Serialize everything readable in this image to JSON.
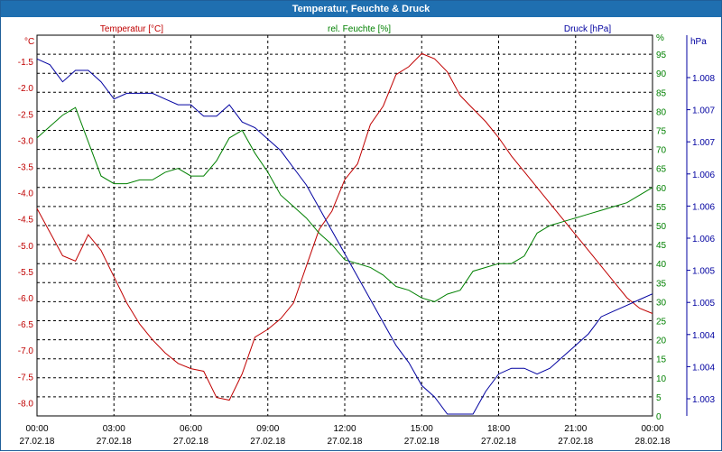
{
  "window": {
    "title": "Temperatur, Feuchte & Druck"
  },
  "chart_data": {
    "type": "line",
    "x_tick_labels": [
      {
        "time": "00:00",
        "date": "27.02.18"
      },
      {
        "time": "03:00",
        "date": "27.02.18"
      },
      {
        "time": "06:00",
        "date": "27.02.18"
      },
      {
        "time": "09:00",
        "date": "27.02.18"
      },
      {
        "time": "12:00",
        "date": "27.02.18"
      },
      {
        "time": "15:00",
        "date": "27.02.18"
      },
      {
        "time": "18:00",
        "date": "27.02.18"
      },
      {
        "time": "21:00",
        "date": "27.02.18"
      },
      {
        "time": "00:00",
        "date": "28.02.18"
      }
    ],
    "grid": true,
    "axes": {
      "temperature": {
        "unit_label": "°C",
        "ylim": [
          -8.25,
          -1.0
        ],
        "ticks": [
          "-1.5",
          "-2.0",
          "-2.5",
          "-3.0",
          "-3.5",
          "-4.0",
          "-4.5",
          "-5.0",
          "-5.5",
          "-6.0",
          "-6.5",
          "-7.0",
          "-7.5",
          "-8.0"
        ],
        "color": "#c00000"
      },
      "humidity": {
        "unit_label": "%",
        "ylim": [
          0,
          100
        ],
        "ticks": [
          "0",
          "5",
          "10",
          "15",
          "20",
          "25",
          "30",
          "35",
          "40",
          "45",
          "50",
          "55",
          "60",
          "65",
          "70",
          "75",
          "80",
          "85",
          "90",
          "95",
          "%"
        ],
        "color": "#008000"
      },
      "pressure": {
        "unit_label": "hPa",
        "ticks": [
          "1.008",
          "1.007",
          "1.007",
          "1.006",
          "1.006",
          "1.006",
          "1.005",
          "1.005",
          "1.004",
          "1.004",
          "1.003"
        ],
        "color": "#0000a0"
      }
    },
    "series": [
      {
        "name": "Temperatur [°C]",
        "axis": "temperature",
        "color": "#c00000",
        "x_hours": [
          0,
          0.5,
          1,
          1.5,
          2,
          2.5,
          3,
          3.5,
          4,
          4.5,
          5,
          5.5,
          6,
          6.5,
          7,
          7.5,
          8,
          8.5,
          9,
          9.5,
          10,
          10.5,
          11,
          11.5,
          12,
          12.5,
          13,
          13.5,
          14,
          14.5,
          15,
          15.5,
          16,
          16.5,
          17,
          17.5,
          18,
          18.5,
          19,
          19.5,
          20,
          20.5,
          21,
          21.5,
          22,
          22.5,
          23,
          23.5,
          24
        ],
        "values": [
          -4.3,
          -4.75,
          -5.2,
          -5.3,
          -4.8,
          -5.1,
          -5.6,
          -6.1,
          -6.5,
          -6.8,
          -7.05,
          -7.25,
          -7.35,
          -7.4,
          -7.9,
          -7.95,
          -7.45,
          -6.75,
          -6.6,
          -6.4,
          -6.1,
          -5.4,
          -4.7,
          -4.35,
          -3.75,
          -3.45,
          -2.7,
          -2.35,
          -1.75,
          -1.6,
          -1.35,
          -1.45,
          -1.7,
          -2.15,
          -2.4,
          -2.65,
          -2.95,
          -3.3,
          -3.6,
          -3.9,
          -4.2,
          -4.5,
          -4.8,
          -5.1,
          -5.4,
          -5.7,
          -6.0,
          -6.2,
          -6.3
        ]
      },
      {
        "name": "rel. Feuchte [%]",
        "axis": "humidity",
        "color": "#008000",
        "x_hours": [
          0,
          0.5,
          1,
          1.5,
          2,
          2.5,
          3,
          3.5,
          4,
          4.5,
          5,
          5.5,
          6,
          6.5,
          7,
          7.5,
          8,
          8.5,
          9,
          9.5,
          10,
          10.5,
          11,
          11.5,
          12,
          12.5,
          13,
          13.5,
          14,
          14.5,
          15,
          15.5,
          16,
          16.5,
          17,
          17.5,
          18,
          18.5,
          19,
          19.5,
          20,
          20.5,
          21,
          21.5,
          22,
          22.5,
          23,
          23.5,
          24
        ],
        "values": [
          73,
          76,
          79,
          81,
          72,
          63,
          61,
          61,
          62,
          62,
          64,
          65,
          63,
          63,
          67,
          73,
          75,
          69,
          64,
          58,
          55,
          52,
          48,
          45,
          41,
          40,
          39,
          37,
          34,
          33,
          31,
          30,
          32,
          33,
          38,
          39,
          40,
          40,
          42,
          48,
          50,
          51,
          52,
          53,
          54,
          55,
          56,
          58,
          60
        ]
      },
      {
        "name": "Druck [hPa]",
        "axis": "pressure",
        "color": "#0000a0",
        "x_hours": [
          0,
          0.5,
          1,
          1.5,
          2,
          2.5,
          3,
          3.5,
          4,
          4.5,
          5,
          5.5,
          6,
          6.5,
          7,
          7.5,
          8,
          8.5,
          9,
          9.5,
          10,
          10.5,
          11,
          11.5,
          12,
          12.5,
          13,
          13.5,
          14,
          14.5,
          15,
          15.5,
          16,
          16.5,
          17,
          17.5,
          18,
          18.5,
          19,
          19.5,
          20,
          20.5,
          21,
          21.5,
          22,
          22.5,
          23,
          23.5,
          24
        ],
        "values": [
          1.0083,
          1.0082,
          1.0079,
          1.0081,
          1.0081,
          1.0079,
          1.0076,
          1.0077,
          1.0077,
          1.0077,
          1.0076,
          1.0075,
          1.0075,
          1.0073,
          1.0073,
          1.0075,
          1.0072,
          1.0071,
          1.0069,
          1.0067,
          1.0064,
          1.0061,
          1.0057,
          1.0053,
          1.0049,
          1.0045,
          1.0041,
          1.0037,
          1.0033,
          1.003,
          1.0026,
          1.0024,
          1.0021,
          1.0021,
          1.0021,
          1.0025,
          1.0028,
          1.0029,
          1.0029,
          1.0028,
          1.0029,
          1.0031,
          1.0033,
          1.0035,
          1.0038,
          1.0039,
          1.004,
          1.0041,
          1.0042
        ]
      }
    ]
  }
}
